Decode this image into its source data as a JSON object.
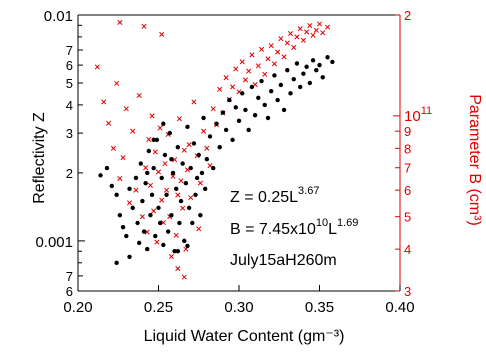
{
  "chart_data": {
    "type": "scatter",
    "xlabel": "Liquid Water Content (gm⁻³)",
    "ylabel_left": "Reflectivity Z",
    "ylabel_right": "Parameter B (cm³)",
    "x_axis": {
      "range": [
        0.2,
        0.4
      ],
      "ticks": [
        0.2,
        0.25,
        0.3,
        0.35,
        0.4
      ],
      "tick_labels": [
        "0.20",
        "0.25",
        "0.30",
        "0.35",
        "0.40"
      ]
    },
    "y_left_axis": {
      "scale": "log",
      "range": [
        0.0006,
        0.01
      ],
      "color": "#000000",
      "labeled_ticks": [
        {
          "value": 0.0006,
          "label": "6"
        },
        {
          "value": 0.0007,
          "label": "7"
        },
        {
          "value": 0.001,
          "label": "0.001"
        },
        {
          "value": 0.002,
          "label": "2"
        },
        {
          "value": 0.003,
          "label": "3"
        },
        {
          "value": 0.004,
          "label": "4"
        },
        {
          "value": 0.005,
          "label": "5"
        },
        {
          "value": 0.006,
          "label": "6"
        },
        {
          "value": 0.007,
          "label": "7"
        },
        {
          "value": 0.01,
          "label": "0.01"
        }
      ]
    },
    "y_right_axis": {
      "scale": "log",
      "range": [
        30000000000.0,
        200000000000.0
      ],
      "color": "#e00000",
      "labeled_ticks": [
        {
          "value": 30000000000.0,
          "label": "3"
        },
        {
          "value": 40000000000.0,
          "label": "4"
        },
        {
          "value": 50000000000.0,
          "label": "5"
        },
        {
          "value": 60000000000.0,
          "label": "6"
        },
        {
          "value": 70000000000.0,
          "label": "7"
        },
        {
          "value": 80000000000.0,
          "label": "8"
        },
        {
          "value": 90000000000.0,
          "label": "9"
        },
        {
          "value": 100000000000.0,
          "label": "10",
          "superscript": "11"
        },
        {
          "value": 200000000000.0,
          "label": "2"
        }
      ]
    },
    "annotations": [
      {
        "text": "Z = 0.25L",
        "superscript": "3.67"
      },
      {
        "text": "B = 7.45x10",
        "superscript": "10",
        "text2": "L",
        "superscript2": "1.69"
      },
      {
        "text": "July15aH260m"
      }
    ],
    "series": [
      {
        "axis": "left",
        "marker": "dot",
        "color": "#000000",
        "points": [
          [
            0.214,
            0.00195
          ],
          [
            0.218,
            0.0021
          ],
          [
            0.221,
            0.00175
          ],
          [
            0.224,
            0.0016
          ],
          [
            0.226,
            0.0013
          ],
          [
            0.228,
            0.00115
          ],
          [
            0.23,
            0.00105
          ],
          [
            0.232,
            0.0017
          ],
          [
            0.234,
            0.0014
          ],
          [
            0.236,
            0.0019
          ],
          [
            0.237,
            0.0012
          ],
          [
            0.238,
            0.00098
          ],
          [
            0.239,
            0.0022
          ],
          [
            0.24,
            0.0015
          ],
          [
            0.241,
            0.0011
          ],
          [
            0.242,
            0.0018
          ],
          [
            0.243,
            0.00092
          ],
          [
            0.244,
            0.0025
          ],
          [
            0.245,
            0.0013
          ],
          [
            0.246,
            0.0016
          ],
          [
            0.247,
            0.0021
          ],
          [
            0.248,
            0.00105
          ],
          [
            0.249,
            0.0028
          ],
          [
            0.25,
            0.0014
          ],
          [
            0.251,
            0.0012
          ],
          [
            0.252,
            0.0019
          ],
          [
            0.253,
            0.00096
          ],
          [
            0.254,
            0.0024
          ],
          [
            0.255,
            0.0016
          ],
          [
            0.256,
            0.0011
          ],
          [
            0.257,
            0.003
          ],
          [
            0.258,
            0.0013
          ],
          [
            0.259,
            0.002
          ],
          [
            0.26,
            0.0009
          ],
          [
            0.261,
            0.0017
          ],
          [
            0.262,
            0.0026
          ],
          [
            0.263,
            0.0012
          ],
          [
            0.264,
            0.0015
          ],
          [
            0.265,
            0.0022
          ],
          [
            0.266,
            0.001
          ],
          [
            0.267,
            0.0018
          ],
          [
            0.268,
            0.0032
          ],
          [
            0.269,
            0.0014
          ],
          [
            0.27,
            0.0021
          ],
          [
            0.271,
            0.0012
          ],
          [
            0.272,
            0.0027
          ],
          [
            0.273,
            0.0016
          ],
          [
            0.274,
            0.0019
          ],
          [
            0.275,
            0.0024
          ],
          [
            0.276,
            0.0013
          ],
          [
            0.277,
            0.002
          ],
          [
            0.278,
            0.0035
          ],
          [
            0.279,
            0.0017
          ],
          [
            0.28,
            0.0023
          ],
          [
            0.282,
            0.0029
          ],
          [
            0.284,
            0.0021
          ],
          [
            0.286,
            0.0033
          ],
          [
            0.288,
            0.0026
          ],
          [
            0.29,
            0.0037
          ],
          [
            0.292,
            0.0031
          ],
          [
            0.294,
            0.0042
          ],
          [
            0.296,
            0.0028
          ],
          [
            0.298,
            0.0039
          ],
          [
            0.3,
            0.0034
          ],
          [
            0.302,
            0.0045
          ],
          [
            0.304,
            0.0038
          ],
          [
            0.306,
            0.0031
          ],
          [
            0.308,
            0.0048
          ],
          [
            0.31,
            0.0036
          ],
          [
            0.312,
            0.0043
          ],
          [
            0.314,
            0.0051
          ],
          [
            0.316,
            0.004
          ],
          [
            0.318,
            0.0035
          ],
          [
            0.32,
            0.0046
          ],
          [
            0.322,
            0.0054
          ],
          [
            0.324,
            0.0042
          ],
          [
            0.326,
            0.0049
          ],
          [
            0.328,
            0.0038
          ],
          [
            0.33,
            0.0057
          ],
          [
            0.332,
            0.0045
          ],
          [
            0.334,
            0.0052
          ],
          [
            0.336,
            0.0061
          ],
          [
            0.338,
            0.0048
          ],
          [
            0.34,
            0.0055
          ],
          [
            0.342,
            0.0059
          ],
          [
            0.344,
            0.005
          ],
          [
            0.346,
            0.0063
          ],
          [
            0.348,
            0.0057
          ],
          [
            0.35,
            0.006
          ],
          [
            0.352,
            0.0053
          ],
          [
            0.355,
            0.0065
          ],
          [
            0.358,
            0.0062
          ],
          [
            0.224,
            0.0008
          ],
          [
            0.232,
            0.00085
          ],
          [
            0.253,
            0.0033
          ],
          [
            0.247,
            0.0028
          ],
          [
            0.262,
            0.0009
          ],
          [
            0.268,
            0.00095
          ],
          [
            0.243,
            0.002
          ],
          [
            0.258,
            0.0023
          ]
        ]
      },
      {
        "axis": "right",
        "marker": "x",
        "color": "#e00000",
        "points": [
          [
            0.212,
            140000000000.0
          ],
          [
            0.216,
            110000000000.0
          ],
          [
            0.219,
            95000000000.0
          ],
          [
            0.222,
            80000000000.0
          ],
          [
            0.224,
            125000000000.0
          ],
          [
            0.226,
            65000000000.0
          ],
          [
            0.228,
            75000000000.0
          ],
          [
            0.23,
            105000000000.0
          ],
          [
            0.232,
            55000000000.0
          ],
          [
            0.234,
            90000000000.0
          ],
          [
            0.236,
            60000000000.0
          ],
          [
            0.238,
            115000000000.0
          ],
          [
            0.24,
            50000000000.0
          ],
          [
            0.242,
            70000000000.0
          ],
          [
            0.243,
            45000000000.0
          ],
          [
            0.244,
            85000000000.0
          ],
          [
            0.245,
            62000000000.0
          ],
          [
            0.246,
            100000000000.0
          ],
          [
            0.247,
            52000000000.0
          ],
          [
            0.248,
            78000000000.0
          ],
          [
            0.249,
            42000000000.0
          ],
          [
            0.25,
            68000000000.0
          ],
          [
            0.251,
            92000000000.0
          ],
          [
            0.252,
            56000000000.0
          ],
          [
            0.253,
            48000000000.0
          ],
          [
            0.254,
            72000000000.0
          ],
          [
            0.255,
            60000000000.0
          ],
          [
            0.256,
            88000000000.0
          ],
          [
            0.257,
            50000000000.0
          ],
          [
            0.258,
            38000000000.0
          ],
          [
            0.259,
            66000000000.0
          ],
          [
            0.26,
            74000000000.0
          ],
          [
            0.261,
            44000000000.0
          ],
          [
            0.262,
            58000000000.0
          ],
          [
            0.263,
            98000000000.0
          ],
          [
            0.264,
            64000000000.0
          ],
          [
            0.265,
            53000000000.0
          ],
          [
            0.266,
            79000000000.0
          ],
          [
            0.267,
            40000000000.0
          ],
          [
            0.268,
            69000000000.0
          ],
          [
            0.269,
            82000000000.0
          ],
          [
            0.27,
            57000000000.0
          ],
          [
            0.272,
            110000000000.0
          ],
          [
            0.274,
            76000000000.0
          ],
          [
            0.276,
            63000000000.0
          ],
          [
            0.278,
            90000000000.0
          ],
          [
            0.28,
            80000000000.0
          ],
          [
            0.282,
            71000000000.0
          ],
          [
            0.284,
            105000000000.0
          ],
          [
            0.286,
            94000000000.0
          ],
          [
            0.288,
            120000000000.0
          ],
          [
            0.29,
            102000000000.0
          ],
          [
            0.292,
            130000000000.0
          ],
          [
            0.294,
            112000000000.0
          ],
          [
            0.296,
            122000000000.0
          ],
          [
            0.298,
            138000000000.0
          ],
          [
            0.3,
            118000000000.0
          ],
          [
            0.302,
            145000000000.0
          ],
          [
            0.304,
            128000000000.0
          ],
          [
            0.306,
            136000000000.0
          ],
          [
            0.308,
            152000000000.0
          ],
          [
            0.31,
            124000000000.0
          ],
          [
            0.312,
            141000000000.0
          ],
          [
            0.314,
            158000000000.0
          ],
          [
            0.316,
            133000000000.0
          ],
          [
            0.318,
            148000000000.0
          ],
          [
            0.32,
            162000000000.0
          ],
          [
            0.322,
            143000000000.0
          ],
          [
            0.324,
            155000000000.0
          ],
          [
            0.326,
            170000000000.0
          ],
          [
            0.328,
            150000000000.0
          ],
          [
            0.33,
            165000000000.0
          ],
          [
            0.332,
            176000000000.0
          ],
          [
            0.334,
            160000000000.0
          ],
          [
            0.336,
            172000000000.0
          ],
          [
            0.338,
            182000000000.0
          ],
          [
            0.34,
            168000000000.0
          ],
          [
            0.342,
            178000000000.0
          ],
          [
            0.344,
            186000000000.0
          ],
          [
            0.346,
            174000000000.0
          ],
          [
            0.348,
            180000000000.0
          ],
          [
            0.35,
            188000000000.0
          ],
          [
            0.352,
            177000000000.0
          ],
          [
            0.355,
            184000000000.0
          ],
          [
            0.226,
            190000000000.0
          ],
          [
            0.241,
            185000000000.0
          ],
          [
            0.252,
            175000000000.0
          ],
          [
            0.266,
            33000000000.0
          ],
          [
            0.262,
            35000000000.0
          ],
          [
            0.275,
            46000000000.0
          ]
        ]
      }
    ]
  }
}
